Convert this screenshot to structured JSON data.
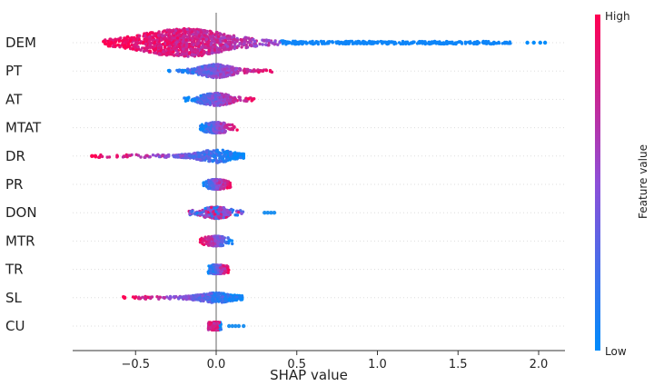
{
  "chart_data": {
    "type": "scatter",
    "subtype": "shap-beeswarm",
    "title": "",
    "xlabel": "SHAP value",
    "ylabel": "",
    "xlim": [
      -0.9,
      2.15
    ],
    "xticks": [
      -0.5,
      0.0,
      0.5,
      1.0,
      1.5,
      2.0
    ],
    "xtick_labels": [
      "−0.5",
      "0.0",
      "0.5",
      "1.0",
      "1.5",
      "2.0"
    ],
    "features": [
      {
        "name": "DEM",
        "min": -0.7,
        "max": 1.83,
        "outliers": [
          1.93,
          1.97,
          2.01,
          2.04
        ],
        "spread": 1.0,
        "color_trend": "high-left"
      },
      {
        "name": "PT",
        "min": -0.3,
        "max": 0.35,
        "outliers": [],
        "spread": 0.6,
        "color_trend": "high-right"
      },
      {
        "name": "AT",
        "min": -0.2,
        "max": 0.24,
        "outliers": [],
        "spread": 0.55,
        "color_trend": "high-right"
      },
      {
        "name": "MTAT",
        "min": -0.1,
        "max": 0.13,
        "outliers": [],
        "spread": 0.45,
        "color_trend": "high-right"
      },
      {
        "name": "DR",
        "min": -0.75,
        "max": 0.17,
        "outliers": [
          -0.77,
          -0.75
        ],
        "spread": 0.6,
        "color_trend": "high-left"
      },
      {
        "name": "PR",
        "min": -0.08,
        "max": 0.09,
        "outliers": [],
        "spread": 0.4,
        "color_trend": "high-right"
      },
      {
        "name": "DON",
        "min": -0.17,
        "max": 0.17,
        "outliers": [
          0.3,
          0.32,
          0.34,
          0.36
        ],
        "spread": 0.5,
        "color_trend": "mixed"
      },
      {
        "name": "MTR",
        "min": -0.1,
        "max": 0.1,
        "outliers": [],
        "spread": 0.4,
        "color_trend": "high-left"
      },
      {
        "name": "TR",
        "min": -0.05,
        "max": 0.08,
        "outliers": [],
        "spread": 0.35,
        "color_trend": "high-right"
      },
      {
        "name": "SL",
        "min": -0.58,
        "max": 0.16,
        "outliers": [],
        "spread": 0.4,
        "color_trend": "high-left"
      },
      {
        "name": "CU",
        "min": -0.05,
        "max": 0.03,
        "outliers": [
          0.08,
          0.1,
          0.12,
          0.14,
          0.17
        ],
        "spread": 0.3,
        "color_trend": "low-right"
      }
    ],
    "colorbar": {
      "label": "Feature value",
      "high_label": "High",
      "low_label": "Low",
      "high_color": "#ff0052",
      "low_color": "#008bfb"
    }
  }
}
